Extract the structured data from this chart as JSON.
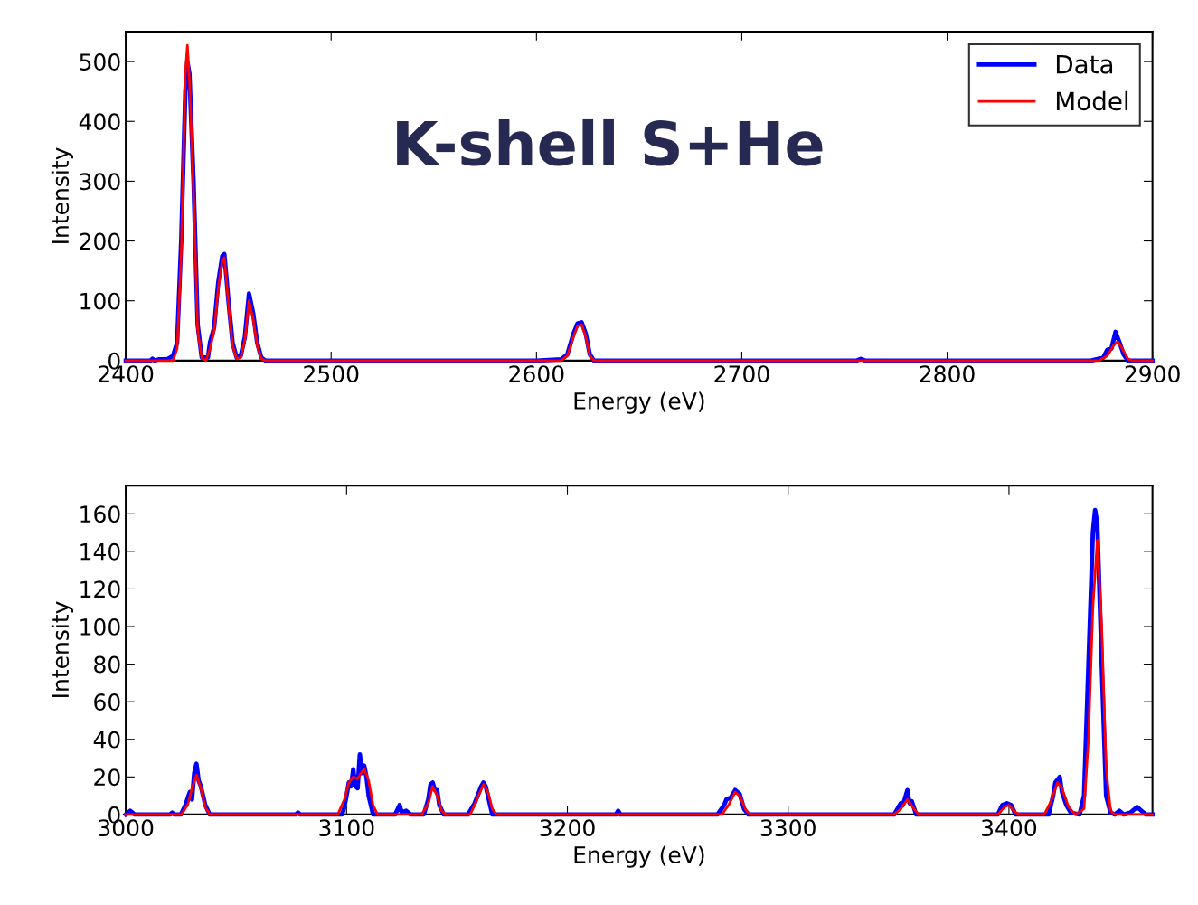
{
  "chart_data": [
    {
      "type": "line",
      "xlabel": "Energy (eV)",
      "ylabel": "Intensity",
      "annotations": [
        "K-shell S+He"
      ],
      "xlim": [
        2400,
        2900
      ],
      "ylim": [
        0,
        550
      ],
      "xticks": [
        2400,
        2500,
        2600,
        2700,
        2800,
        2900
      ],
      "yticks": [
        0,
        100,
        200,
        300,
        400,
        500
      ],
      "legend": "top right",
      "grid": false,
      "series": [
        {
          "name": "Data",
          "color": "#0000ff",
          "x": [
            2400,
            2412,
            2413,
            2414,
            2416,
            2420,
            2423,
            2425,
            2427,
            2429,
            2430,
            2431,
            2433,
            2435,
            2437,
            2440,
            2441,
            2443,
            2445,
            2447,
            2448,
            2450,
            2452,
            2454,
            2456,
            2458,
            2460,
            2462,
            2464,
            2466,
            2468,
            2500,
            2600,
            2612,
            2615,
            2618,
            2620,
            2622,
            2624,
            2626,
            2628,
            2756,
            2758,
            2760,
            2870,
            2876,
            2878,
            2880,
            2882,
            2884,
            2886,
            2888,
            2900
          ],
          "values": [
            0,
            0,
            3,
            0,
            2,
            2,
            8,
            30,
            200,
            450,
            500,
            480,
            300,
            60,
            5,
            5,
            30,
            55,
            130,
            175,
            178,
            100,
            30,
            5,
            8,
            40,
            112,
            80,
            30,
            5,
            0,
            0,
            0,
            2,
            10,
            45,
            62,
            64,
            45,
            10,
            0,
            0,
            3,
            0,
            0,
            5,
            18,
            20,
            48,
            30,
            10,
            0,
            0
          ]
        },
        {
          "name": "Model",
          "color": "#ff0000",
          "x": [
            2400,
            2423,
            2425,
            2427,
            2429,
            2430,
            2431,
            2433,
            2435,
            2437,
            2439,
            2441,
            2443,
            2445,
            2447,
            2448,
            2450,
            2452,
            2454,
            2456,
            2458,
            2460,
            2462,
            2464,
            2466,
            2468,
            2612,
            2615,
            2618,
            2620,
            2622,
            2624,
            2626,
            2628,
            2874,
            2878,
            2881,
            2883,
            2885,
            2888,
            2890,
            2900
          ],
          "values": [
            0,
            0,
            20,
            180,
            480,
            527,
            470,
            280,
            50,
            5,
            0,
            20,
            50,
            120,
            168,
            172,
            95,
            25,
            3,
            5,
            35,
            100,
            70,
            25,
            3,
            0,
            0,
            8,
            40,
            58,
            60,
            40,
            8,
            0,
            0,
            8,
            25,
            32,
            22,
            3,
            0,
            0
          ]
        }
      ]
    },
    {
      "type": "line",
      "xlabel": "Energy (eV)",
      "ylabel": "Intensity",
      "xlim": [
        3000,
        3465
      ],
      "ylim": [
        0,
        175
      ],
      "xticks": [
        3000,
        3100,
        3200,
        3300,
        3400
      ],
      "yticks": [
        0,
        20,
        40,
        60,
        80,
        100,
        120,
        140,
        160
      ],
      "grid": false,
      "series": [
        {
          "color": "#0000ff",
          "x": [
            3000,
            3002,
            3004,
            3020,
            3021,
            3022,
            3025,
            3027,
            3029,
            3030,
            3031,
            3032,
            3033,
            3034,
            3036,
            3038,
            3077,
            3078,
            3079,
            3098,
            3099,
            3100,
            3101,
            3102,
            3103,
            3104,
            3105,
            3106,
            3107,
            3108,
            3109,
            3110,
            3111,
            3112,
            3122,
            3124,
            3125,
            3127,
            3129,
            3135,
            3137,
            3138,
            3139,
            3140,
            3141,
            3142,
            3144,
            3155,
            3158,
            3161,
            3162,
            3163,
            3165,
            3166,
            3222,
            3223,
            3224,
            3268,
            3271,
            3272,
            3274,
            3276,
            3278,
            3280,
            3282,
            3348,
            3351,
            3352,
            3354,
            3355,
            3356,
            3358,
            3395,
            3397,
            3399,
            3401,
            3403,
            3418,
            3420,
            3421,
            3423,
            3424,
            3426,
            3428,
            3432,
            3434,
            3436,
            3438,
            3439,
            3440,
            3442,
            3444,
            3446,
            3448,
            3450,
            3452,
            3455,
            3458,
            3460,
            3462,
            3465
          ],
          "values": [
            0,
            2,
            0,
            0,
            1,
            0,
            0,
            5,
            12,
            8,
            22,
            27,
            18,
            15,
            5,
            0,
            0,
            1,
            0,
            0,
            4,
            10,
            17,
            15,
            24,
            15,
            14,
            32,
            22,
            26,
            20,
            10,
            5,
            0,
            0,
            5,
            1,
            2,
            0,
            0,
            8,
            16,
            17,
            13,
            13,
            5,
            0,
            0,
            6,
            15,
            17,
            15,
            5,
            0,
            0,
            2,
            0,
            0,
            5,
            8,
            9,
            13,
            11,
            3,
            0,
            0,
            6,
            5,
            13,
            6,
            7,
            0,
            0,
            5,
            6,
            5,
            0,
            0,
            10,
            17,
            20,
            12,
            5,
            1,
            0,
            10,
            80,
            150,
            162,
            155,
            80,
            10,
            1,
            0,
            2,
            0,
            1,
            4,
            2,
            0,
            0
          ]
        },
        {
          "color": "#ff0000",
          "x": [
            3000,
            3025,
            3028,
            3030,
            3032,
            3034,
            3036,
            3038,
            3096,
            3099,
            3101,
            3103,
            3105,
            3107,
            3108,
            3110,
            3112,
            3114,
            3134,
            3137,
            3139,
            3141,
            3143,
            3145,
            3156,
            3159,
            3162,
            3164,
            3166,
            3168,
            3270,
            3273,
            3276,
            3278,
            3281,
            3283,
            3348,
            3351,
            3354,
            3357,
            3359,
            3395,
            3398,
            3400,
            3403,
            3405,
            3416,
            3419,
            3422,
            3424,
            3427,
            3430,
            3434,
            3436,
            3438,
            3440,
            3442,
            3444,
            3446,
            3448,
            3465
          ],
          "values": [
            0,
            0,
            5,
            14,
            21,
            14,
            4,
            0,
            0,
            8,
            17,
            20,
            19,
            23,
            24,
            18,
            5,
            0,
            0,
            6,
            15,
            10,
            2,
            0,
            0,
            8,
            16,
            12,
            3,
            0,
            0,
            5,
            12,
            10,
            2,
            0,
            0,
            3,
            8,
            3,
            0,
            0,
            4,
            5,
            1,
            0,
            0,
            7,
            17,
            14,
            4,
            0,
            3,
            40,
            110,
            146,
            100,
            25,
            2,
            0,
            0
          ]
        }
      ]
    }
  ]
}
